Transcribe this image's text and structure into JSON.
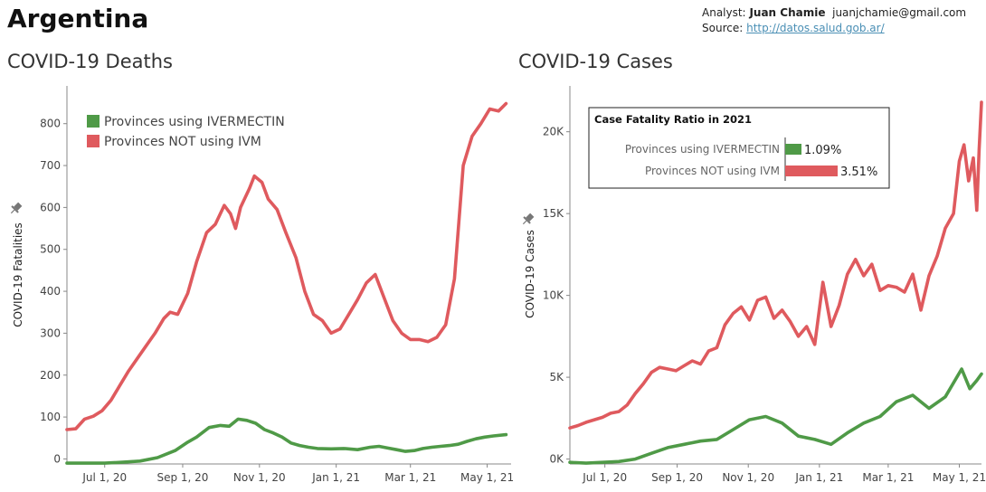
{
  "page": {
    "country": "Argentina",
    "analyst_label": "Analyst:",
    "analyst_name": "Juan Chamie",
    "analyst_email": "juanjchamie@gmail.com",
    "source_label": "Source:",
    "source_link": "http://datos.salud.gob.ar/"
  },
  "colors": {
    "ivm": "#4f9a47",
    "noivm": "#df5a5e",
    "axis": "#555555",
    "text": "#444444"
  },
  "icons": {
    "pin": "pin-icon"
  },
  "chart_data": [
    {
      "id": "deaths",
      "type": "line",
      "title": "COVID-19 Deaths",
      "ylabel": "COVID-19 Fatalities",
      "xlabel": "",
      "ylim": [
        -12,
        890
      ],
      "yticks": [
        0,
        100,
        200,
        300,
        400,
        500,
        600,
        700,
        800
      ],
      "yticklabels": [
        "0",
        "100",
        "200",
        "300",
        "400",
        "500",
        "600",
        "700",
        "800"
      ],
      "xlim": [
        "2020-06-01",
        "2021-05-20"
      ],
      "xticks": [
        "2020-07-01",
        "2020-09-01",
        "2020-11-01",
        "2021-01-01",
        "2021-03-01",
        "2021-05-01"
      ],
      "xticklabels": [
        "Jul 1, 20",
        "Sep 1, 20",
        "Nov 1, 20",
        "Jan 1, 21",
        "Mar 1, 21",
        "May 1, 21"
      ],
      "legend_position": "top-left",
      "series": [
        {
          "name": "Provinces NOT using IVM",
          "color_key": "noivm",
          "points": [
            [
              "2020-06-01",
              70
            ],
            [
              "2020-06-08",
              72
            ],
            [
              "2020-06-15",
              95
            ],
            [
              "2020-06-22",
              102
            ],
            [
              "2020-06-29",
              115
            ],
            [
              "2020-07-06",
              140
            ],
            [
              "2020-07-13",
              175
            ],
            [
              "2020-07-20",
              210
            ],
            [
              "2020-07-27",
              240
            ],
            [
              "2020-08-03",
              270
            ],
            [
              "2020-08-10",
              300
            ],
            [
              "2020-08-17",
              335
            ],
            [
              "2020-08-22",
              350
            ],
            [
              "2020-08-28",
              345
            ],
            [
              "2020-09-05",
              395
            ],
            [
              "2020-09-12",
              470
            ],
            [
              "2020-09-20",
              540
            ],
            [
              "2020-09-27",
              560
            ],
            [
              "2020-10-04",
              605
            ],
            [
              "2020-10-09",
              585
            ],
            [
              "2020-10-13",
              550
            ],
            [
              "2020-10-17",
              600
            ],
            [
              "2020-10-24",
              645
            ],
            [
              "2020-10-28",
              675
            ],
            [
              "2020-11-03",
              660
            ],
            [
              "2020-11-08",
              620
            ],
            [
              "2020-11-15",
              595
            ],
            [
              "2020-11-22",
              540
            ],
            [
              "2020-11-30",
              480
            ],
            [
              "2020-12-07",
              400
            ],
            [
              "2020-12-14",
              345
            ],
            [
              "2020-12-21",
              330
            ],
            [
              "2020-12-28",
              300
            ],
            [
              "2021-01-04",
              310
            ],
            [
              "2021-01-11",
              345
            ],
            [
              "2021-01-18",
              380
            ],
            [
              "2021-01-25",
              420
            ],
            [
              "2021-02-01",
              440
            ],
            [
              "2021-02-08",
              385
            ],
            [
              "2021-02-15",
              330
            ],
            [
              "2021-02-22",
              300
            ],
            [
              "2021-03-01",
              285
            ],
            [
              "2021-03-08",
              285
            ],
            [
              "2021-03-15",
              280
            ],
            [
              "2021-03-22",
              290
            ],
            [
              "2021-03-29",
              320
            ],
            [
              "2021-04-05",
              430
            ],
            [
              "2021-04-12",
              700
            ],
            [
              "2021-04-19",
              770
            ],
            [
              "2021-04-26",
              800
            ],
            [
              "2021-05-03",
              835
            ],
            [
              "2021-05-10",
              830
            ],
            [
              "2021-05-16",
              848
            ]
          ]
        },
        {
          "name": "Provinces using IVERMECTIN",
          "color_key": "ivm",
          "points": [
            [
              "2020-06-01",
              -10
            ],
            [
              "2020-06-15",
              -10
            ],
            [
              "2020-07-01",
              -10
            ],
            [
              "2020-07-15",
              -8
            ],
            [
              "2020-07-29",
              -5
            ],
            [
              "2020-08-12",
              3
            ],
            [
              "2020-08-26",
              20
            ],
            [
              "2020-09-05",
              40
            ],
            [
              "2020-09-12",
              52
            ],
            [
              "2020-09-22",
              75
            ],
            [
              "2020-10-01",
              80
            ],
            [
              "2020-10-08",
              78
            ],
            [
              "2020-10-15",
              95
            ],
            [
              "2020-10-22",
              92
            ],
            [
              "2020-10-29",
              85
            ],
            [
              "2020-11-05",
              70
            ],
            [
              "2020-11-12",
              62
            ],
            [
              "2020-11-19",
              52
            ],
            [
              "2020-11-26",
              38
            ],
            [
              "2020-12-03",
              32
            ],
            [
              "2020-12-10",
              28
            ],
            [
              "2020-12-17",
              25
            ],
            [
              "2020-12-28",
              24
            ],
            [
              "2021-01-07",
              25
            ],
            [
              "2021-01-18",
              22
            ],
            [
              "2021-01-28",
              28
            ],
            [
              "2021-02-04",
              30
            ],
            [
              "2021-02-11",
              26
            ],
            [
              "2021-02-18",
              22
            ],
            [
              "2021-02-25",
              18
            ],
            [
              "2021-03-04",
              20
            ],
            [
              "2021-03-11",
              25
            ],
            [
              "2021-03-18",
              28
            ],
            [
              "2021-03-25",
              30
            ],
            [
              "2021-04-01",
              32
            ],
            [
              "2021-04-08",
              35
            ],
            [
              "2021-04-15",
              42
            ],
            [
              "2021-04-22",
              48
            ],
            [
              "2021-04-29",
              52
            ],
            [
              "2021-05-06",
              55
            ],
            [
              "2021-05-16",
              58
            ]
          ]
        }
      ]
    },
    {
      "id": "cases",
      "type": "line",
      "title": "COVID-19 Cases",
      "ylabel": "COVID-19 Cases",
      "xlabel": "",
      "ylim": [
        -300,
        22800
      ],
      "yticks": [
        0,
        5000,
        10000,
        15000,
        20000
      ],
      "yticklabels": [
        "0K",
        "5K",
        "10K",
        "15K",
        "20K"
      ],
      "xlim": [
        "2020-06-01",
        "2021-05-20"
      ],
      "xticks": [
        "2020-07-01",
        "2020-09-01",
        "2020-11-01",
        "2021-01-01",
        "2021-03-01",
        "2021-05-01"
      ],
      "xticklabels": [
        "Jul 1, 20",
        "Sep 1, 20",
        "Nov 1, 20",
        "Jan 1, 21",
        "Mar 1, 21",
        "May 1, 21"
      ],
      "series": [
        {
          "name": "Provinces NOT using IVM",
          "color_key": "noivm",
          "points": [
            [
              "2020-06-01",
              1900
            ],
            [
              "2020-06-08",
              2050
            ],
            [
              "2020-06-15",
              2250
            ],
            [
              "2020-06-22",
              2400
            ],
            [
              "2020-06-29",
              2550
            ],
            [
              "2020-07-06",
              2800
            ],
            [
              "2020-07-13",
              2900
            ],
            [
              "2020-07-20",
              3300
            ],
            [
              "2020-07-27",
              4000
            ],
            [
              "2020-08-03",
              4600
            ],
            [
              "2020-08-10",
              5300
            ],
            [
              "2020-08-17",
              5600
            ],
            [
              "2020-08-24",
              5500
            ],
            [
              "2020-08-31",
              5400
            ],
            [
              "2020-09-07",
              5700
            ],
            [
              "2020-09-14",
              6000
            ],
            [
              "2020-09-21",
              5800
            ],
            [
              "2020-09-28",
              6600
            ],
            [
              "2020-10-05",
              6800
            ],
            [
              "2020-10-12",
              8200
            ],
            [
              "2020-10-19",
              8900
            ],
            [
              "2020-10-26",
              9300
            ],
            [
              "2020-11-02",
              8500
            ],
            [
              "2020-11-09",
              9700
            ],
            [
              "2020-11-16",
              9900
            ],
            [
              "2020-11-23",
              8600
            ],
            [
              "2020-11-30",
              9100
            ],
            [
              "2020-12-07",
              8400
            ],
            [
              "2020-12-14",
              7500
            ],
            [
              "2020-12-21",
              8100
            ],
            [
              "2020-12-28",
              7000
            ],
            [
              "2021-01-04",
              10800
            ],
            [
              "2021-01-11",
              8100
            ],
            [
              "2021-01-18",
              9400
            ],
            [
              "2021-01-25",
              11300
            ],
            [
              "2021-02-01",
              12200
            ],
            [
              "2021-02-08",
              11200
            ],
            [
              "2021-02-15",
              11900
            ],
            [
              "2021-02-22",
              10300
            ],
            [
              "2021-03-01",
              10600
            ],
            [
              "2021-03-08",
              10500
            ],
            [
              "2021-03-15",
              10200
            ],
            [
              "2021-03-22",
              11300
            ],
            [
              "2021-03-29",
              9100
            ],
            [
              "2021-04-05",
              11200
            ],
            [
              "2021-04-12",
              12400
            ],
            [
              "2021-04-19",
              14100
            ],
            [
              "2021-04-26",
              15000
            ],
            [
              "2021-05-01",
              18200
            ],
            [
              "2021-05-05",
              19200
            ],
            [
              "2021-05-09",
              17000
            ],
            [
              "2021-05-13",
              18400
            ],
            [
              "2021-05-16",
              15200
            ],
            [
              "2021-05-18",
              18900
            ],
            [
              "2021-05-20",
              21800
            ]
          ]
        },
        {
          "name": "Provinces using IVERMECTIN",
          "color_key": "ivm",
          "points": [
            [
              "2020-06-01",
              -200
            ],
            [
              "2020-06-15",
              -250
            ],
            [
              "2020-06-29",
              -200
            ],
            [
              "2020-07-13",
              -150
            ],
            [
              "2020-07-27",
              0
            ],
            [
              "2020-08-10",
              350
            ],
            [
              "2020-08-24",
              700
            ],
            [
              "2020-09-07",
              900
            ],
            [
              "2020-09-21",
              1100
            ],
            [
              "2020-10-05",
              1200
            ],
            [
              "2020-10-19",
              1800
            ],
            [
              "2020-11-02",
              2400
            ],
            [
              "2020-11-16",
              2600
            ],
            [
              "2020-11-30",
              2200
            ],
            [
              "2020-12-14",
              1400
            ],
            [
              "2020-12-28",
              1200
            ],
            [
              "2021-01-11",
              900
            ],
            [
              "2021-01-25",
              1600
            ],
            [
              "2021-02-08",
              2200
            ],
            [
              "2021-02-22",
              2600
            ],
            [
              "2021-03-08",
              3500
            ],
            [
              "2021-03-22",
              3900
            ],
            [
              "2021-04-05",
              3100
            ],
            [
              "2021-04-19",
              3800
            ],
            [
              "2021-05-03",
              5500
            ],
            [
              "2021-05-10",
              4300
            ],
            [
              "2021-05-16",
              4800
            ],
            [
              "2021-05-20",
              5200
            ]
          ]
        }
      ]
    }
  ],
  "cfr": {
    "title": "Case Fatality Ratio in 2021",
    "rows": [
      {
        "label": "Provinces using IVERMECTIN",
        "value": 1.09,
        "value_label": "1.09%",
        "color_key": "ivm"
      },
      {
        "label": "Provinces NOT using IVM",
        "value": 3.51,
        "value_label": "3.51%",
        "color_key": "noivm"
      }
    ]
  }
}
